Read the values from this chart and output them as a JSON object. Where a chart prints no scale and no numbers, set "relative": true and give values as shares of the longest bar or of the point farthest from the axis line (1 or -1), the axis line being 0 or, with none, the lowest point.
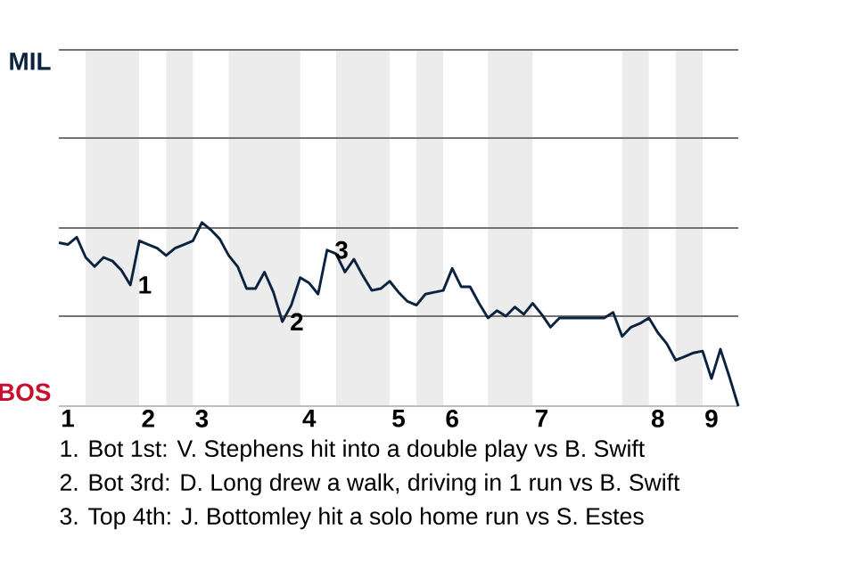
{
  "chart_data": {
    "type": "line",
    "relative": true,
    "categories": [
      null,
      "1",
      null,
      null,
      null,
      null,
      null,
      null,
      null,
      null,
      "2",
      null,
      null,
      null,
      null,
      null,
      "3",
      null,
      null,
      null,
      null,
      null,
      null,
      null,
      null,
      null,
      null,
      null,
      "4",
      null,
      null,
      null,
      null,
      null,
      null,
      null,
      null,
      null,
      "5",
      null,
      null,
      null,
      null,
      null,
      "6",
      null,
      null,
      null,
      null,
      null,
      null,
      null,
      null,
      null,
      "7",
      null,
      null,
      null,
      null,
      null,
      null,
      null,
      null,
      null,
      null,
      null,
      null,
      "8",
      null,
      null,
      null,
      null,
      null,
      "9",
      null,
      null,
      null
    ],
    "series": [
      {
        "color": "#0c2340",
        "values": [
          0.89,
          0.88,
          0.92,
          0.81,
          0.76,
          0.81,
          0.79,
          0.74,
          0.66,
          0.9,
          0.88,
          0.86,
          0.82,
          0.86,
          0.88,
          0.9,
          1,
          0.96,
          0.91,
          0.82,
          0.76,
          0.64,
          0.64,
          0.73,
          0.62,
          0.46,
          0.55,
          0.7,
          0.67,
          0.61,
          0.85,
          0.83,
          0.73,
          0.8,
          0.71,
          0.63,
          0.64,
          0.68,
          0.62,
          0.57,
          0.55,
          0.61,
          0.62,
          0.63,
          0.75,
          0.65,
          0.65,
          0.56,
          0.48,
          0.52,
          0.49,
          0.54,
          0.5,
          0.56,
          0.5,
          0.43,
          0.48,
          0.48,
          0.48,
          0.48,
          0.48,
          0.48,
          0.51,
          0.38,
          0.43,
          0.45,
          0.48,
          0.4,
          0.34,
          0.25,
          0.27,
          0.29,
          0.3,
          0.15,
          0.31,
          0.16,
          0
        ]
      }
    ],
    "ref_lines": [
      {
        "axis": "y",
        "value": 0.49,
        "color": "#737373"
      },
      {
        "axis": "y",
        "value": 0.97,
        "color": "#737373"
      },
      {
        "axis": "y",
        "value": 1.46,
        "color": "#737373"
      },
      {
        "axis": "y",
        "value": 1.94,
        "color": "#737373"
      }
    ],
    "marker": "none",
    "line_style": "solid",
    "annotations": [
      "MIL",
      "BOS",
      "1",
      "2",
      "3",
      "1. Bot 1st: V. Stephens hit into a double play vs B. Swift",
      "2. Bot 3rd: D. Long drew a walk, driving in 1 run vs B. Swift",
      "3. Top 4th: J. Bottomley hit a solo home run vs S. Estes"
    ]
  }
}
